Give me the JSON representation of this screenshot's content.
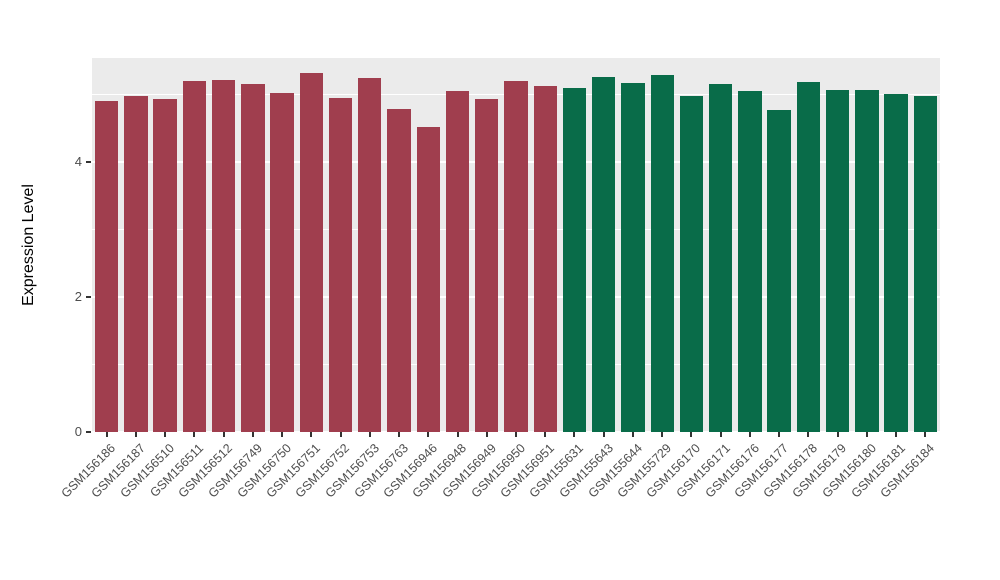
{
  "chart_data": {
    "type": "bar",
    "title": "",
    "xlabel": "",
    "ylabel": "Expression Level",
    "ylim": [
      0,
      5.54
    ],
    "yticks_major": [
      0,
      2,
      4
    ],
    "yticks_minor": [
      1,
      3,
      5
    ],
    "grid": "on",
    "legend": "none",
    "panel_background": "#EBEBEB",
    "categories": [
      "GSM156186",
      "GSM156187",
      "GSM156510",
      "GSM156511",
      "GSM156512",
      "GSM156749",
      "GSM156750",
      "GSM156751",
      "GSM156752",
      "GSM156753",
      "GSM156763",
      "GSM156946",
      "GSM156948",
      "GSM156949",
      "GSM156950",
      "GSM156951",
      "GSM155631",
      "GSM155643",
      "GSM155644",
      "GSM155729",
      "GSM156170",
      "GSM156171",
      "GSM156176",
      "GSM156177",
      "GSM156178",
      "GSM156179",
      "GSM156180",
      "GSM156181",
      "GSM156184"
    ],
    "values": [
      4.9,
      4.98,
      4.93,
      5.2,
      5.21,
      5.16,
      5.02,
      5.32,
      4.95,
      5.24,
      4.79,
      4.52,
      5.05,
      4.93,
      5.2,
      5.13,
      5.1,
      5.26,
      5.17,
      5.29,
      4.98,
      5.16,
      5.05,
      4.77,
      5.19,
      5.07,
      5.07,
      5.01,
      4.98
    ],
    "colors": [
      "#A03E4E",
      "#A03E4E",
      "#A03E4E",
      "#A03E4E",
      "#A03E4E",
      "#A03E4E",
      "#A03E4E",
      "#A03E4E",
      "#A03E4E",
      "#A03E4E",
      "#A03E4E",
      "#A03E4E",
      "#A03E4E",
      "#A03E4E",
      "#A03E4E",
      "#A03E4E",
      "#096C49",
      "#096C49",
      "#096C49",
      "#096C49",
      "#096C49",
      "#096C49",
      "#096C49",
      "#096C49",
      "#096C49",
      "#096C49",
      "#096C49",
      "#096C49",
      "#096C49"
    ],
    "group_colors": {
      "maroon": "#A03E4E",
      "green": "#096C49"
    },
    "group_sizes": [
      16,
      13
    ]
  }
}
